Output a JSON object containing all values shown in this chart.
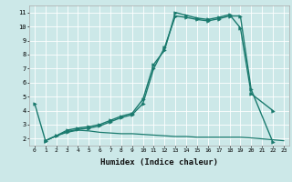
{
  "title": "",
  "xlabel": "Humidex (Indice chaleur)",
  "ylabel": "",
  "xlim": [
    -0.5,
    23.5
  ],
  "ylim": [
    1.5,
    11.5
  ],
  "yticks": [
    2,
    3,
    4,
    5,
    6,
    7,
    8,
    9,
    10,
    11
  ],
  "xticks": [
    0,
    1,
    2,
    3,
    4,
    5,
    6,
    7,
    8,
    9,
    10,
    11,
    12,
    13,
    14,
    15,
    16,
    17,
    18,
    19,
    20,
    21,
    22,
    23
  ],
  "background_color": "#cce8e8",
  "line_color": "#1a7a6e",
  "grid_color": "#ffffff",
  "lines": [
    {
      "x": [
        1,
        2,
        3,
        4,
        5,
        6,
        7,
        8,
        9,
        10,
        11,
        12,
        13,
        14,
        15,
        16,
        17,
        18,
        19,
        20,
        23
      ],
      "y": [
        1.85,
        2.2,
        2.45,
        2.6,
        2.55,
        2.45,
        2.4,
        2.35,
        2.35,
        2.3,
        2.25,
        2.2,
        2.15,
        2.15,
        2.1,
        2.1,
        2.1,
        2.1,
        2.1,
        2.05,
        1.85
      ],
      "marker": false,
      "linewidth": 0.9
    },
    {
      "x": [
        0,
        1,
        2,
        3,
        4,
        5,
        6,
        7,
        8,
        9,
        10,
        11,
        12,
        13,
        14,
        15,
        16,
        17,
        18,
        19,
        20,
        22
      ],
      "y": [
        4.5,
        1.85,
        2.2,
        2.6,
        2.75,
        2.85,
        3.0,
        3.3,
        3.6,
        3.8,
        4.8,
        7.3,
        8.3,
        11.0,
        10.8,
        10.6,
        10.5,
        10.65,
        10.85,
        9.9,
        5.2,
        4.0
      ],
      "marker": true,
      "linewidth": 1.0
    },
    {
      "x": [
        1,
        2,
        3,
        4,
        5,
        6,
        7,
        8,
        9,
        10,
        11,
        12,
        13,
        14,
        15,
        16,
        17,
        18,
        19,
        20,
        22
      ],
      "y": [
        1.85,
        2.2,
        2.5,
        2.65,
        2.75,
        2.9,
        3.2,
        3.5,
        3.7,
        4.5,
        7.0,
        8.5,
        10.75,
        10.65,
        10.5,
        10.4,
        10.55,
        10.75,
        10.75,
        5.5,
        1.75
      ],
      "marker": true,
      "linewidth": 1.0
    }
  ]
}
